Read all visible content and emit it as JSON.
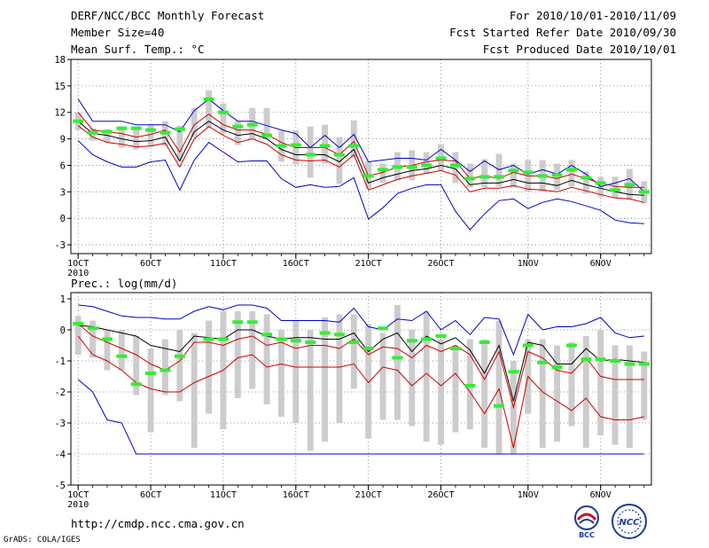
{
  "header": {
    "left": [
      "DERF/NCC/BCC Monthly Forecast",
      "Member Size=40",
      "Mean Surf. Temp.: °C"
    ],
    "right": [
      "For 2010/10/01-2010/11/09",
      "Fcst Started Refer Date 2010/09/30",
      "Fcst Produced Date 2010/10/01"
    ]
  },
  "footer": {
    "url": "http://cmdp.ncc.cma.gov.cn",
    "credit": "GrADS: COLA/IGES"
  },
  "logos": {
    "bcc": "BCC",
    "ncc": "NCC"
  },
  "colors": {
    "max_min": "#0000cc",
    "mid_band": "#cc0000",
    "mean": "#000000",
    "observed": "#33ee33",
    "range_box": "#cccccc"
  },
  "chart_data": [
    {
      "type": "line",
      "title": "Mean Surf. Temp.: °C",
      "ylim": [
        -4,
        18
      ],
      "yticks": [
        -3,
        0,
        3,
        6,
        9,
        12,
        15,
        18
      ],
      "xlim": [
        0.5,
        40.5
      ],
      "xticks": [
        {
          "day": 1,
          "label": "1OCT",
          "sub": "2010"
        },
        {
          "day": 6,
          "label": "6OCT"
        },
        {
          "day": 11,
          "label": "11OCT"
        },
        {
          "day": 16,
          "label": "16OCT"
        },
        {
          "day": 21,
          "label": "21OCT"
        },
        {
          "day": 26,
          "label": "26OCT"
        },
        {
          "day": 32,
          "label": "1NOV"
        },
        {
          "day": 37,
          "label": "6NOV"
        }
      ],
      "days": [
        1,
        2,
        3,
        4,
        5,
        6,
        7,
        8,
        9,
        10,
        11,
        12,
        13,
        14,
        15,
        16,
        17,
        18,
        19,
        20,
        21,
        22,
        23,
        24,
        25,
        26,
        27,
        28,
        29,
        30,
        31,
        32,
        33,
        34,
        35,
        36,
        37,
        38,
        39,
        40
      ],
      "series": [
        {
          "name": "max",
          "role": "max_min",
          "values": [
            13.5,
            11,
            11,
            11,
            10.6,
            10.6,
            10.6,
            9.8,
            12.2,
            13.5,
            12.2,
            11,
            11,
            10.5,
            10,
            9.6,
            8,
            9.4,
            8,
            9.5,
            6.4,
            6.6,
            6.8,
            6.8,
            6.6,
            7.8,
            6.6,
            5.3,
            6.5,
            5.5,
            6,
            5,
            5.5,
            5,
            6,
            5,
            3.6,
            4,
            4.5,
            3
          ]
        },
        {
          "name": "upper",
          "role": "mid_band",
          "values": [
            12,
            10,
            9.8,
            9.6,
            9.2,
            9.5,
            10,
            7.5,
            10.6,
            11.8,
            10.6,
            10,
            10,
            9.5,
            8.6,
            8,
            8,
            8,
            7.2,
            8.7,
            4.8,
            5.2,
            5.8,
            6,
            6.4,
            6.6,
            6.5,
            4.5,
            4.8,
            4.5,
            5.2,
            4.8,
            4.8,
            4.5,
            5,
            4.5,
            4,
            3.6,
            3.5,
            3.5
          ]
        },
        {
          "name": "mean",
          "role": "mean",
          "values": [
            11,
            9.6,
            9.4,
            9,
            8.7,
            8.8,
            9.2,
            6.5,
            9.8,
            11,
            10,
            9.4,
            9.6,
            9,
            7.8,
            7.2,
            7.2,
            7.2,
            6.4,
            7.8,
            4,
            4.6,
            5,
            5.4,
            5.6,
            6,
            5.6,
            3.8,
            4,
            4,
            4.4,
            4,
            4,
            3.7,
            4.3,
            3.8,
            3.4,
            3,
            2.7,
            2.6
          ]
        },
        {
          "name": "lower",
          "role": "mid_band",
          "values": [
            10.5,
            9.2,
            8.6,
            8.4,
            8.1,
            8.2,
            8.5,
            5.8,
            9,
            10.4,
            9.4,
            8.6,
            9,
            8.4,
            7.2,
            6.6,
            6.5,
            6.6,
            5.8,
            7.2,
            3.2,
            3.8,
            4.4,
            4.8,
            5.1,
            5.4,
            4.9,
            3,
            3.4,
            3.4,
            3.7,
            3.3,
            3.2,
            3,
            3.5,
            3.1,
            2.7,
            2.3,
            2.2,
            1.8
          ]
        },
        {
          "name": "min",
          "role": "max_min",
          "values": [
            8.8,
            7.2,
            6.4,
            5.8,
            5.8,
            6.4,
            6.6,
            3.2,
            6.6,
            8.6,
            7.5,
            6.4,
            6.5,
            6.5,
            4.5,
            3.5,
            3.8,
            3.5,
            3.6,
            4.6,
            -0.1,
            1.2,
            2.8,
            3.4,
            3.8,
            3.8,
            0.8,
            -1.3,
            0.5,
            2,
            2.2,
            1.1,
            1.8,
            2.2,
            1.9,
            1.4,
            0.9,
            -0.2,
            -0.5,
            -0.6
          ]
        },
        {
          "name": "observed",
          "role": "observed",
          "values": [
            11,
            9.7,
            9.8,
            10.2,
            10.2,
            10,
            9.7,
            10.1,
            null,
            13.5,
            12,
            10.4,
            10.6,
            9.4,
            8.2,
            8.3,
            7.2,
            8.2,
            7.2,
            8.2,
            4.8,
            5.5,
            5.8,
            5.8,
            6,
            6.8,
            6,
            4.5,
            4.7,
            4.7,
            5.4,
            5.2,
            4.8,
            4.9,
            5.5,
            4.6,
            4,
            3.2,
            3.8,
            3
          ]
        }
      ],
      "boxes": {
        "low": [
          10,
          8.8,
          8.6,
          8,
          7.8,
          8.1,
          8.2,
          6.4,
          9.2,
          10.2,
          9.6,
          8.3,
          9,
          9,
          6.4,
          6.1,
          4.6,
          6.2,
          3.9,
          6.9,
          3.3,
          4,
          4.3,
          4.3,
          5,
          5.4,
          4,
          3.5,
          3.5,
          3.6,
          3.5,
          3,
          3,
          3.2,
          3.6,
          2.8,
          2.4,
          2.3,
          2.1,
          1.7
        ],
        "high": [
          12,
          10.2,
          10.1,
          10.4,
          10.4,
          10.6,
          11,
          10.5,
          12.5,
          14.5,
          13,
          11,
          12.5,
          12.5,
          9.9,
          10,
          10.4,
          10.6,
          9.2,
          11.1,
          6.5,
          6.2,
          7.5,
          7.7,
          7.5,
          8.4,
          7.5,
          6.2,
          6.7,
          7.3,
          6.2,
          6.6,
          6.6,
          6.2,
          6.6,
          5.3,
          4.7,
          4.7,
          5.6,
          4.2
        ]
      }
    },
    {
      "type": "line",
      "title": "Prec.: log(mm/d)",
      "ylim": [
        -5,
        1.2
      ],
      "yticks": [
        -5,
        -4,
        -3,
        -2,
        -1,
        0,
        1
      ],
      "xlim": [
        0.5,
        40.5
      ],
      "xticks": [
        {
          "day": 1,
          "label": "1OCT",
          "sub": "2010"
        },
        {
          "day": 6,
          "label": "6OCT"
        },
        {
          "day": 11,
          "label": "11OCT"
        },
        {
          "day": 16,
          "label": "16OCT"
        },
        {
          "day": 21,
          "label": "21OCT"
        },
        {
          "day": 26,
          "label": "26OCT"
        },
        {
          "day": 32,
          "label": "1NOV"
        },
        {
          "day": 37,
          "label": "6NOV"
        }
      ],
      "days": [
        1,
        2,
        3,
        4,
        5,
        6,
        7,
        8,
        9,
        10,
        11,
        12,
        13,
        14,
        15,
        16,
        17,
        18,
        19,
        20,
        21,
        22,
        23,
        24,
        25,
        26,
        27,
        28,
        29,
        30,
        31,
        32,
        33,
        34,
        35,
        36,
        37,
        38,
        39,
        40
      ],
      "series": [
        {
          "name": "max",
          "role": "max_min",
          "values": [
            0.8,
            0.75,
            0.6,
            0.45,
            0.4,
            0.4,
            0.35,
            0.35,
            0.6,
            0.75,
            0.65,
            0.8,
            0.8,
            0.7,
            0.3,
            0.3,
            0.3,
            0.3,
            0.25,
            0.7,
            0.1,
            0,
            0.35,
            0.3,
            0.6,
            0,
            0.3,
            -0.15,
            0.4,
            0.35,
            -0.8,
            0.5,
            0,
            0.1,
            0.1,
            0.2,
            0.4,
            -0.1,
            -0.25,
            -0.2
          ]
        },
        {
          "name": "mean",
          "role": "mean",
          "values": [
            0.15,
            0.1,
            0,
            -0.1,
            -0.2,
            -0.5,
            -0.6,
            -0.7,
            -0.2,
            -0.25,
            -0.3,
            0,
            0,
            -0.2,
            -0.3,
            -0.25,
            -0.25,
            -0.3,
            -0.3,
            -0.1,
            -0.7,
            -0.3,
            -0.1,
            -0.7,
            -0.2,
            -0.45,
            -0.25,
            -0.65,
            -1.4,
            -0.5,
            -2.3,
            -0.4,
            -0.5,
            -1.1,
            -1.1,
            -0.6,
            -1,
            -0.95,
            -1,
            -1.05
          ]
        },
        {
          "name": "upper",
          "role": "mid_band",
          "values": [
            0.2,
            -0.2,
            -0.4,
            -0.6,
            -0.8,
            -1.1,
            -1.3,
            -1,
            -0.4,
            -0.4,
            -0.5,
            -0.3,
            -0.2,
            -0.5,
            -0.4,
            -0.6,
            -0.5,
            -0.5,
            -0.6,
            -0.3,
            -0.8,
            -0.55,
            -0.6,
            -0.9,
            -0.5,
            -0.7,
            -0.5,
            -0.8,
            -1.6,
            -0.7,
            -2.5,
            -0.7,
            -0.9,
            -1.3,
            -1.4,
            -0.9,
            -1.5,
            -1.6,
            -1.6,
            -1.6
          ]
        },
        {
          "name": "lower",
          "role": "mid_band",
          "values": [
            -0.2,
            -0.8,
            -1,
            -1.3,
            -1.7,
            -1.9,
            -2,
            -2,
            -1.7,
            -1.5,
            -1.3,
            -0.9,
            -0.8,
            -1.2,
            -1.1,
            -1.2,
            -1.2,
            -1.2,
            -1.2,
            -1.1,
            -1.7,
            -1.2,
            -1.3,
            -1.8,
            -1.4,
            -1.8,
            -1.4,
            -2,
            -2.7,
            -1.9,
            -3.8,
            -1.5,
            -2,
            -2.3,
            -2.6,
            -2.2,
            -2.8,
            -2.9,
            -2.9,
            -2.8
          ]
        },
        {
          "name": "min",
          "role": "max_min",
          "values": [
            -1.6,
            -2,
            -2.9,
            -3,
            -4,
            -4,
            -4,
            -4,
            -4,
            -4,
            -4,
            -4,
            -4,
            -4,
            -4,
            -4,
            -4,
            -4,
            -4,
            -4,
            -4,
            -4,
            -4,
            -4,
            -4,
            -4,
            -4,
            -4,
            -4,
            -4,
            -4,
            -4,
            -4,
            -4,
            -4,
            -4,
            -4,
            -4,
            -4,
            -4
          ]
        },
        {
          "name": "observed",
          "role": "observed",
          "values": [
            0.2,
            0.05,
            -0.3,
            -0.85,
            -1.75,
            -1.4,
            -1.3,
            -0.85,
            null,
            -0.3,
            -0.3,
            0.25,
            0.25,
            -0.15,
            -0.3,
            -0.35,
            -0.4,
            -0.1,
            -0.15,
            -0.4,
            -0.6,
            0.05,
            -0.9,
            -0.35,
            -0.3,
            -0.2,
            -0.6,
            -1.8,
            -0.4,
            -2.45,
            -1.35,
            -0.5,
            -1.05,
            -1.2,
            -0.5,
            -0.95,
            -0.95,
            -1,
            -1.1,
            -1.1
          ]
        }
      ],
      "boxes": {
        "low": [
          -0.8,
          -0.9,
          -1.3,
          -1.3,
          -2.1,
          -3.3,
          -2.1,
          -2.3,
          -3.8,
          -2.7,
          -3.2,
          -2.2,
          -1.9,
          -2.4,
          -2.8,
          -3,
          -3.9,
          -3.6,
          -3,
          -1.9,
          -3.5,
          -2.9,
          -2.9,
          -3.1,
          -3.6,
          -3.7,
          -3.3,
          -3.2,
          -3.8,
          -4,
          -4,
          -2.7,
          -3.8,
          -3.6,
          -3.1,
          -3.8,
          -3.4,
          -3.7,
          -3.8,
          -2.9
        ],
        "high": [
          0.45,
          0.3,
          0,
          0,
          -0.2,
          -0.6,
          -0.3,
          0,
          -0.1,
          0.3,
          0.6,
          0.6,
          0.6,
          0.5,
          0,
          0.3,
          0,
          0.4,
          0.5,
          0.5,
          0.2,
          -0.1,
          0.8,
          0,
          0.6,
          -0.3,
          -0.5,
          -0.3,
          -0.3,
          0.3,
          -1,
          -0.3,
          -0.3,
          -0.5,
          -0.4,
          -0.2,
          0,
          -0.5,
          -0.5,
          -0.7
        ]
      }
    }
  ]
}
